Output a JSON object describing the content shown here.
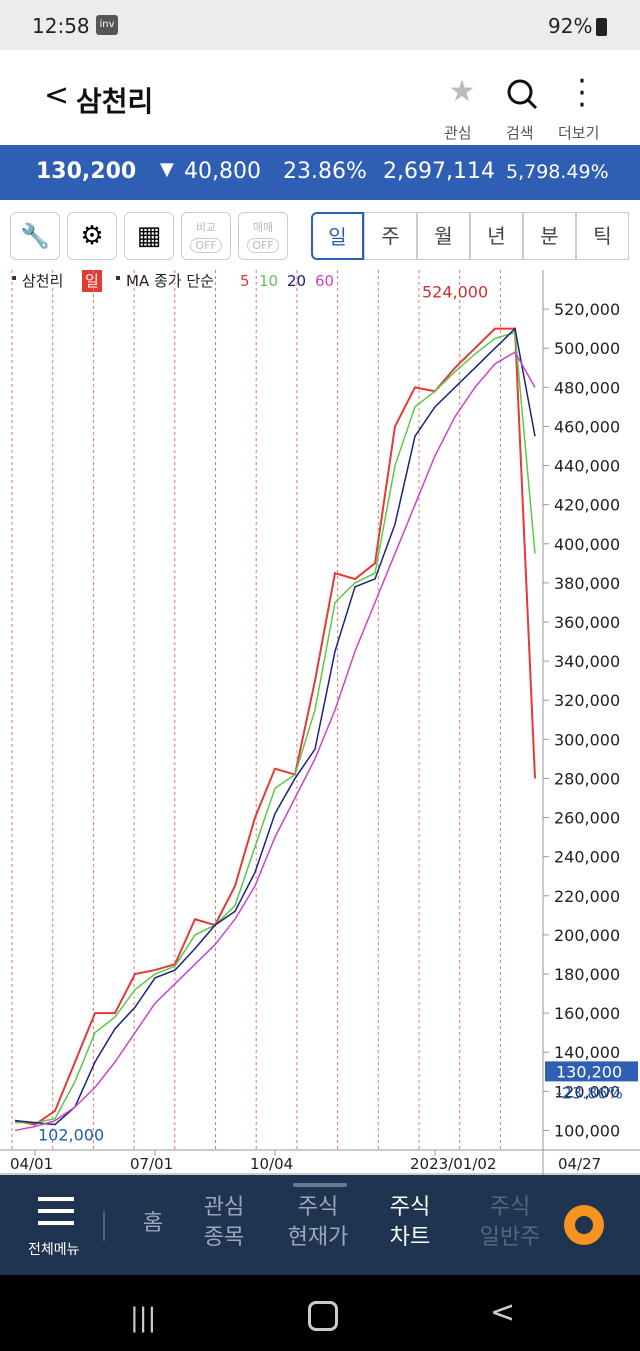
{
  "status": {
    "time": "12:58",
    "battery": "92%"
  },
  "header": {
    "title": "삼천리",
    "actions": [
      "관심",
      "검색",
      "더보기"
    ]
  },
  "quote": {
    "price": "130,200",
    "change": "40,800",
    "rate": "23.86%",
    "volume": "2,697,114",
    "turnover": "5,798.49%"
  },
  "toolbar": {
    "toggles": [
      {
        "label": "비교",
        "state": "OFF"
      },
      {
        "label": "매매",
        "state": "OFF"
      }
    ],
    "periods": [
      "일",
      "주",
      "월",
      "년",
      "분",
      "틱"
    ]
  },
  "chart_data": {
    "type": "line",
    "legend_name": "삼천리",
    "legend_period": "일",
    "ma_label": "MA 종가 단순",
    "categories": [
      null,
      "04/01",
      null,
      null,
      null,
      null,
      null,
      "07/01",
      null,
      null,
      null,
      null,
      null,
      "10/04",
      null,
      null,
      null,
      null,
      null,
      null,
      null,
      "2023/01/02",
      null,
      null,
      null,
      null,
      null
    ],
    "current_date": "04/27",
    "series": [
      {
        "name": "5",
        "color": "#e53935",
        "values": [
          105000,
          103000,
          110000,
          135000,
          160000,
          160000,
          180000,
          182000,
          185000,
          208000,
          205000,
          225000,
          260000,
          285000,
          282000,
          330000,
          385000,
          382000,
          390000,
          460000,
          480000,
          478000,
          490000,
          500000,
          510000,
          510000,
          280000
        ]
      },
      {
        "name": "10",
        "color": "#5cc84a",
        "values": [
          104000,
          104000,
          106000,
          125000,
          150000,
          158000,
          172000,
          180000,
          184000,
          200000,
          205000,
          215000,
          245000,
          275000,
          282000,
          315000,
          370000,
          380000,
          385000,
          440000,
          470000,
          478000,
          488000,
          497000,
          505000,
          508000,
          395000
        ]
      },
      {
        "name": "20",
        "color": "#1a237e",
        "values": [
          105000,
          104000,
          103000,
          112000,
          135000,
          152000,
          163000,
          178000,
          182000,
          193000,
          205000,
          212000,
          232000,
          262000,
          280000,
          295000,
          345000,
          378000,
          382000,
          410000,
          455000,
          470000,
          480000,
          490000,
          500000,
          510000,
          455000
        ]
      },
      {
        "name": "60",
        "color": "#cc44cc",
        "values": [
          100000,
          102000,
          105000,
          112000,
          122000,
          135000,
          150000,
          165000,
          175000,
          185000,
          195000,
          208000,
          225000,
          250000,
          270000,
          290000,
          315000,
          345000,
          370000,
          395000,
          420000,
          445000,
          465000,
          480000,
          492000,
          498000,
          480000
        ]
      }
    ],
    "high": {
      "value": 524000,
      "label": "524,000"
    },
    "low": {
      "value": 102000,
      "label": "102,000"
    },
    "current": {
      "value": 130200,
      "label": "130,200"
    },
    "current_change": "-23.86%",
    "ylim": [
      90000,
      540000
    ],
    "yticks": [
      {
        "value": 100000,
        "label": "100,000"
      },
      {
        "value": 120000,
        "label": "120,000"
      },
      {
        "value": 140000,
        "label": "140,000"
      },
      {
        "value": 160000,
        "label": "160,000"
      },
      {
        "value": 180000,
        "label": "180,000"
      },
      {
        "value": 200000,
        "label": "200,000"
      },
      {
        "value": 220000,
        "label": "220,000"
      },
      {
        "value": 240000,
        "label": "240,000"
      },
      {
        "value": 260000,
        "label": "260,000"
      },
      {
        "value": 280000,
        "label": "280,000"
      },
      {
        "value": 300000,
        "label": "300,000"
      },
      {
        "value": 320000,
        "label": "320,000"
      },
      {
        "value": 340000,
        "label": "340,000"
      },
      {
        "value": 360000,
        "label": "360,000"
      },
      {
        "value": 380000,
        "label": "380,000"
      },
      {
        "value": 400000,
        "label": "400,000"
      },
      {
        "value": 420000,
        "label": "420,000"
      },
      {
        "value": 440000,
        "label": "440,000"
      },
      {
        "value": 460000,
        "label": "460,000"
      },
      {
        "value": 480000,
        "label": "480,000"
      },
      {
        "value": 500000,
        "label": "500,000"
      },
      {
        "value": 520000,
        "label": "520,000"
      }
    ]
  },
  "bottom_nav": {
    "menu": "전체메뉴",
    "items": [
      [
        "홈"
      ],
      [
        "관심",
        "종목"
      ],
      [
        "주식",
        "현재가"
      ],
      [
        "주식",
        "차트"
      ],
      [
        "주식",
        "일반주"
      ]
    ]
  }
}
